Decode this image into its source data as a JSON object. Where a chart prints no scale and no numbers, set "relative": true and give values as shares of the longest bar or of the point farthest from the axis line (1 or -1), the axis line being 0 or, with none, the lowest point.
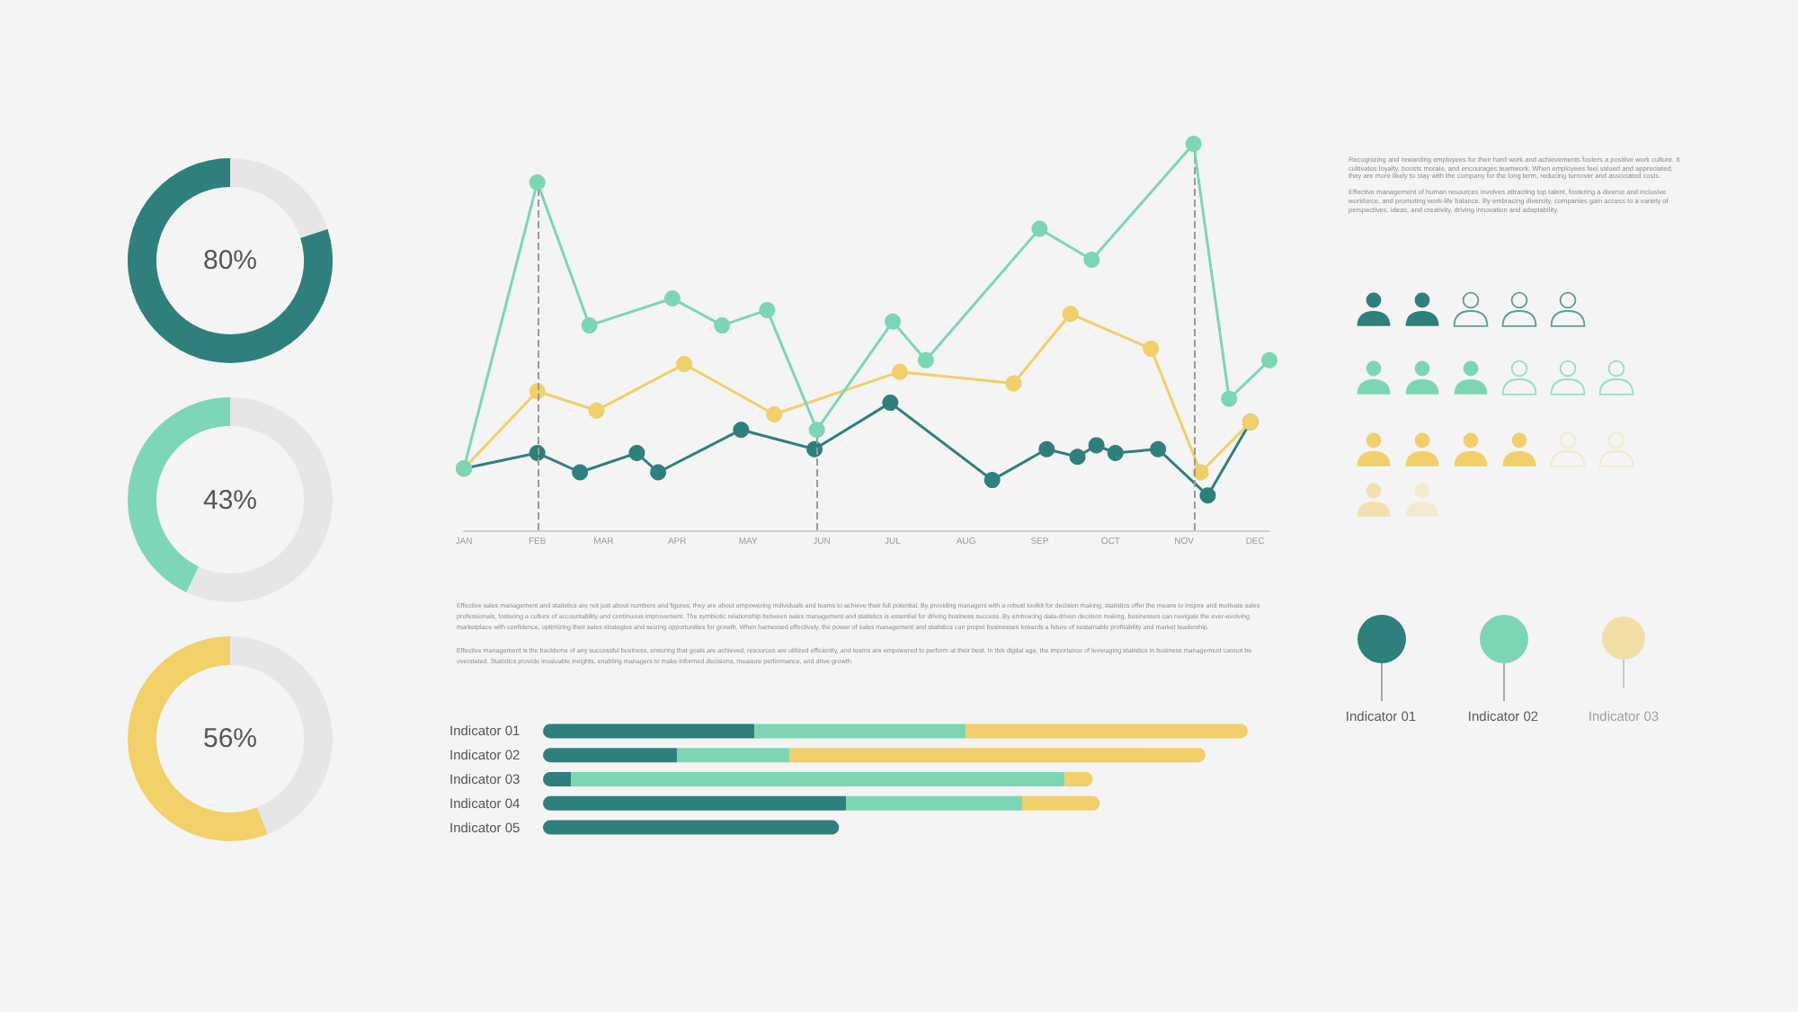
{
  "chart_data": [
    {
      "type": "donut",
      "categories": [
        null,
        null
      ],
      "values": [
        80,
        20
      ],
      "colors": [
        "#2f7f7d",
        "#e6e6e6"
      ],
      "value_labels": [
        "80%",
        null
      ]
    },
    {
      "type": "donut",
      "categories": [
        null,
        null
      ],
      "values": [
        43,
        57
      ],
      "colors": [
        "#7dd7b6",
        "#e6e6e6"
      ],
      "annotations": [
        "43%"
      ]
    },
    {
      "type": "donut",
      "categories": [
        null,
        null
      ],
      "values": [
        56,
        44
      ],
      "colors": [
        "#f2d06a",
        "#e6e6e6"
      ],
      "value_labels": [
        "56%",
        null
      ]
    },
    {
      "type": "line",
      "relative": true,
      "marker": "circle",
      "line_style": "solid",
      "xlim": [
        "--01-01",
        "--12-07"
      ],
      "xticks": [
        {
          "value": "--01-01",
          "label": "JAN"
        },
        {
          "value": "--02-01",
          "label": "FEB"
        },
        {
          "value": "--03-01",
          "label": "MAR"
        },
        {
          "value": "--04-01",
          "label": "APR"
        },
        {
          "value": "--05-01",
          "label": "MAY"
        },
        {
          "value": "--06-01",
          "label": "JUN"
        },
        {
          "value": "--07-01",
          "label": "JUL"
        },
        {
          "value": "--08-01",
          "label": "AUG"
        },
        {
          "value": "--09-01",
          "label": "SEP"
        },
        {
          "value": "--10-01",
          "label": "OCT"
        },
        {
          "value": "--11-01",
          "label": "NOV"
        },
        {
          "value": "--12-01",
          "label": "DEC"
        }
      ],
      "series": [
        {
          "color": "#2f7f7d",
          "x": [
            "--01-01",
            "--02-01",
            "--02-19",
            "--03-15",
            "--03-24",
            "--04-28",
            "--05-29",
            "--06-30",
            "--08-12",
            "--09-04",
            "--09-17",
            "--09-25",
            "--10-03",
            "--10-21",
            "--11-11",
            "--11-29"
          ],
          "values": [
            0.16,
            0.2,
            0.15,
            0.2,
            0.15,
            0.26,
            0.21,
            0.33,
            0.13,
            0.21,
            0.19,
            0.22,
            0.2,
            0.21,
            0.09,
            0.28
          ]
        },
        {
          "color": "#f1cf6a",
          "x": [
            "--01-01",
            "--02-01",
            "--02-26",
            "--04-04",
            "--05-12",
            "--07-04",
            "--08-21",
            "--09-14",
            "--10-18",
            "--11-08",
            "--11-29"
          ],
          "values": [
            0.16,
            0.36,
            0.31,
            0.43,
            0.3,
            0.41,
            0.38,
            0.56,
            0.47,
            0.15,
            0.28
          ]
        },
        {
          "color": "#7cd6b4",
          "x": [
            "--01-01",
            "--02-01",
            "--02-23",
            "--03-30",
            "--04-20",
            "--05-09",
            "--05-30",
            "--07-01",
            "--07-15",
            "--09-01",
            "--09-23",
            "--11-05",
            "--11-20",
            "--12-07"
          ],
          "values": [
            0.16,
            0.9,
            0.53,
            0.6,
            0.53,
            0.57,
            0.26,
            0.54,
            0.44,
            0.78,
            0.7,
            1,
            0.34,
            0.44
          ]
        }
      ],
      "ref_lines": [
        {
          "axis": "x",
          "value": "--02-01",
          "color": "#9a9a9a",
          "line_style": "dashed"
        },
        {
          "axis": "x",
          "value": "--05-30",
          "color": "#9a9a9a",
          "line_style": "dashed"
        },
        {
          "axis": "x",
          "value": "--11-05",
          "color": "#9a9a9a",
          "line_style": "dashed"
        }
      ],
      "annotations": [
        "Effective sales management and statistics are not just about numbers and figures; they are about empowering individuals and teams to achieve their full potential. By providing managers with a robust toolkit for decision making, statistics offer the means to inspire and motivate sales professionals, fostering a culture of accountability and continuous improvement. The symbiotic relationship between sales management and statistics is essential for driving business success. By embracing data-driven decision making, businesses can navigate the ever-evolving marketplace with confidence, optimizing their sales strategies and seizing opportunities for growth. When harnessed effectively, the power of sales management and statistics can propel businesses towards a future of sustainable profitability and market leadership.",
        "Effective management is the backbone of any successful business, ensuring that goals are achieved, resources are utilized efficiently, and teams are empowered to perform at their best. In this digital age, the importance of leveraging statistics in business management cannot be overstated. Statistics provide invaluable insights, enabling managers to make informed decisions, measure performance, and drive growth."
      ]
    },
    {
      "type": "bar",
      "orientation": "horizontal",
      "stacked": true,
      "relative": true,
      "categories": [
        "Indicator 01",
        "Indicator 02",
        "Indicator 03",
        "Indicator 04",
        "Indicator 05"
      ],
      "series": [
        {
          "color": "#2f7f7d",
          "values": [
            0.3,
            0.19,
            0.04,
            0.43,
            0.42
          ]
        },
        {
          "color": "#7cd6b4",
          "values": [
            0.3,
            0.16,
            0.7,
            0.25,
            null
          ]
        },
        {
          "color": "#f1cf6a",
          "values": [
            0.4,
            0.59,
            0.04,
            0.11,
            null
          ]
        }
      ]
    },
    {
      "type": "other",
      "annotations": [
        "Recognizing and rewarding employees for their hard work and achievements fosters a positive work culture. It cultivates loyalty, boosts morale, and encourages teamwork. When employees feel valued and appreciated, they are more likely to stay with the company for the long term, reducing turnover and associated costs.",
        "Effective management of human resources involves attracting top talent, fostering a diverse and inclusive workforce, and promoting work-life balance. By embracing diversity, companies gain access to a variety of perspectives, ideas, and creativity, driving innovation and adaptability."
      ]
    },
    {
      "type": "other",
      "annotations": [
        "Indicator 01",
        "Indicator 02",
        "Indicator 03"
      ]
    }
  ]
}
